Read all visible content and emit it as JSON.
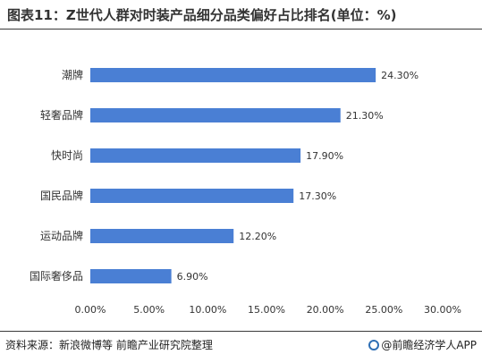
{
  "header": {
    "title": "图表11：Z世代人群对时装产品细分品类偏好占比排名(单位：%)"
  },
  "footer": {
    "source": "资料来源：新浪微博等  前瞻产业研究院整理",
    "brand": "@前瞻经济学人APP"
  },
  "chart_data": {
    "type": "bar",
    "orientation": "horizontal",
    "title": "图表11：Z世代人群对时装产品细分品类偏好占比排名(单位：%)",
    "categories": [
      "潮牌",
      "轻奢品牌",
      "快时尚",
      "国民品牌",
      "运动品牌",
      "国际奢侈品"
    ],
    "values": [
      24.3,
      21.3,
      17.9,
      17.3,
      12.2,
      6.9
    ],
    "data_labels": [
      "24.30%",
      "21.30%",
      "17.90%",
      "17.30%",
      "12.20%",
      "6.90%"
    ],
    "x_ticks": [
      "0.00%",
      "5.00%",
      "10.00%",
      "15.00%",
      "20.00%",
      "25.00%",
      "30.00%"
    ],
    "xlim": [
      0,
      30
    ],
    "xlabel": "",
    "ylabel": "",
    "grid": false,
    "legend": "none",
    "bar_color": "#4a7fd4"
  }
}
